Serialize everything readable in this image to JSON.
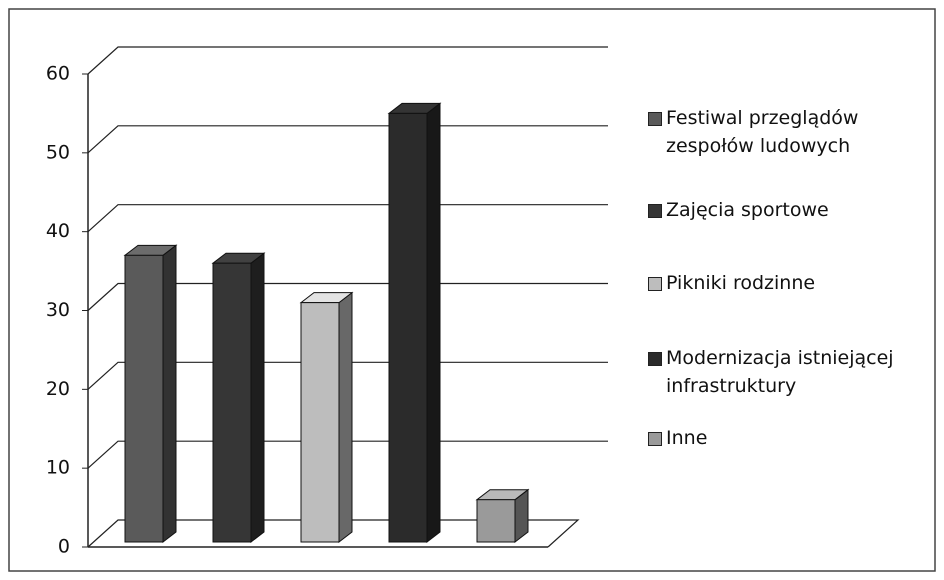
{
  "chart_data": {
    "type": "bar",
    "categories": [
      null
    ],
    "series": [
      {
        "name": "Festiwal przeglądów zespołów ludowych",
        "color": "#5a5a5a",
        "values": [
          37
        ]
      },
      {
        "name": "Zajęcia sportowe",
        "color": "#363636",
        "values": [
          36
        ]
      },
      {
        "name": "Pikniki rodzinne",
        "color": "#bdbdbd",
        "values": [
          31
        ]
      },
      {
        "name": "Modernizacja istniejącej infrastruktury",
        "color": "#2b2b2b",
        "values": [
          55
        ]
      },
      {
        "name": "Inne",
        "color": "#9a9a9a",
        "values": [
          6
        ]
      }
    ],
    "ylim": [
      0,
      60
    ],
    "yticks": [
      0,
      10,
      20,
      30,
      40,
      50,
      60
    ],
    "grid": true,
    "legend": "right"
  }
}
